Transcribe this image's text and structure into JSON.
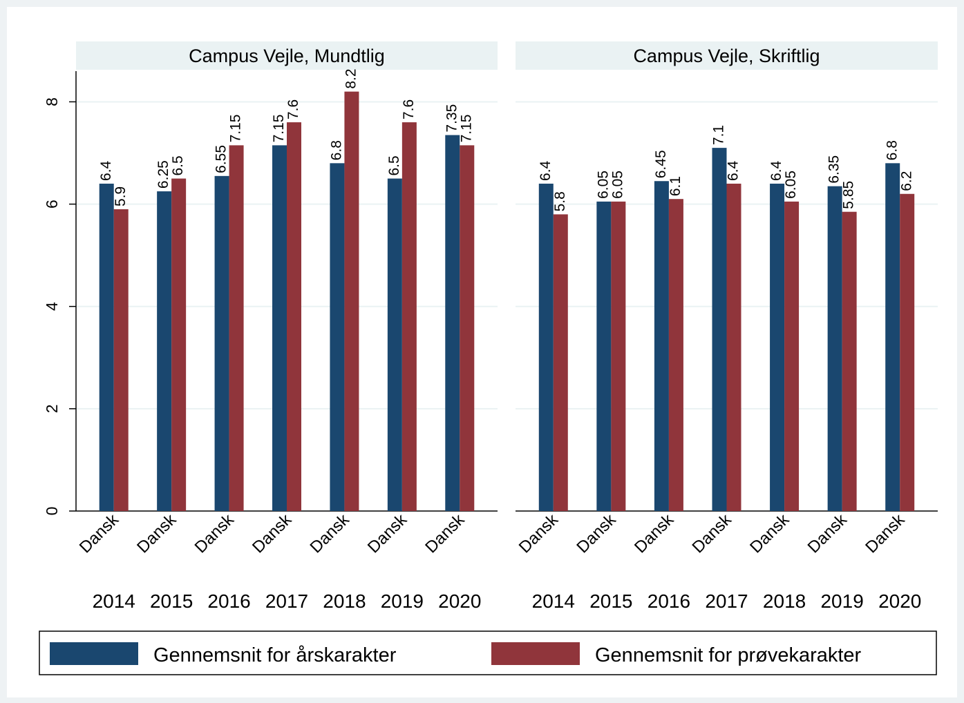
{
  "chart_data": [
    {
      "type": "bar",
      "title": "Campus Vejle, Mundtlig",
      "categories": [
        "Dansk",
        "Dansk",
        "Dansk",
        "Dansk",
        "Dansk",
        "Dansk",
        "Dansk"
      ],
      "groups": [
        "2014",
        "2015",
        "2016",
        "2017",
        "2018",
        "2019",
        "2020"
      ],
      "series": [
        {
          "name": "Gennemsnit for årskarakter",
          "color": "#1a476f",
          "values": [
            6.4,
            6.25,
            6.55,
            7.15,
            6.8,
            6.5,
            7.35
          ]
        },
        {
          "name": "Gennemsnit for prøvekarakter",
          "color": "#90353b",
          "values": [
            5.9,
            6.5,
            7.15,
            7.6,
            8.2,
            7.6,
            7.15
          ]
        }
      ],
      "ylim": [
        0,
        8.6
      ],
      "yticks": [
        0,
        2,
        4,
        6,
        8
      ],
      "grid": true
    },
    {
      "type": "bar",
      "title": "Campus Vejle, Skriftlig",
      "categories": [
        "Dansk",
        "Dansk",
        "Dansk",
        "Dansk",
        "Dansk",
        "Dansk",
        "Dansk"
      ],
      "groups": [
        "2014",
        "2015",
        "2016",
        "2017",
        "2018",
        "2019",
        "2020"
      ],
      "series": [
        {
          "color": "#1a476f",
          "values": [
            6.4,
            6.05,
            6.45,
            7.1,
            6.4,
            6.35,
            6.8
          ]
        },
        {
          "color": "#90353b",
          "values": [
            5.8,
            6.05,
            6.1,
            6.4,
            6.05,
            5.85,
            6.2
          ]
        }
      ],
      "ylim": [
        0,
        8.6
      ],
      "yticks": [
        0,
        2,
        4,
        6,
        8
      ],
      "grid": true
    }
  ]
}
